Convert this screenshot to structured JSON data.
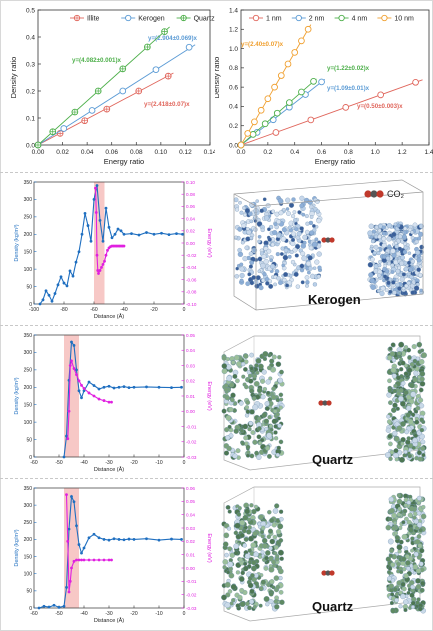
{
  "chart_data": [
    {
      "type": "scatter",
      "ylabel": "Density ratio",
      "xlabel": "Energy ratio",
      "xlim": [
        0,
        0.14
      ],
      "ylim": [
        0,
        0.5
      ],
      "xticks": [
        "0.00",
        "0.02",
        "0.04",
        "0.06",
        "0.08",
        "0.10",
        "0.12",
        "0.14"
      ],
      "yticks": [
        "0.0",
        "0.1",
        "0.2",
        "0.3",
        "0.4",
        "0.5"
      ],
      "legend_position": "top",
      "series": [
        {
          "name": "Illite",
          "color": "#e0665c",
          "marker": "cross-circle",
          "fit": "y=(2.418±0.07)x",
          "slope": 2.418,
          "x": [
            0.0,
            0.018,
            0.038,
            0.056,
            0.082,
            0.106
          ],
          "y": [
            0.0,
            0.043,
            0.09,
            0.133,
            0.2,
            0.255
          ]
        },
        {
          "name": "Kerogen",
          "color": "#5b9bd5",
          "marker": "circle",
          "fit": "y=(2.904±0.069)x",
          "slope": 2.904,
          "x": [
            0.0,
            0.021,
            0.044,
            0.069,
            0.096,
            0.123
          ],
          "y": [
            0.0,
            0.061,
            0.128,
            0.2,
            0.279,
            0.362
          ]
        },
        {
          "name": "Quartz",
          "color": "#4daf4a",
          "marker": "cross-circle",
          "fit": "y=(4.082±0.001)x",
          "slope": 4.082,
          "x": [
            0.0,
            0.012,
            0.03,
            0.049,
            0.069,
            0.089,
            0.103
          ],
          "y": [
            0.0,
            0.049,
            0.122,
            0.2,
            0.282,
            0.363,
            0.42
          ]
        }
      ]
    },
    {
      "type": "scatter",
      "ylabel": "Density ratio",
      "xlabel": "Energy ratio",
      "xlim": [
        0,
        1.4
      ],
      "ylim": [
        0,
        1.4
      ],
      "xticks": [
        "0.0",
        "0.2",
        "0.4",
        "0.6",
        "0.8",
        "1.0",
        "1.2",
        "1.4"
      ],
      "yticks": [
        "0.0",
        "0.2",
        "0.4",
        "0.6",
        "0.8",
        "1.0",
        "1.2",
        "1.4"
      ],
      "legend_position": "top",
      "series": [
        {
          "name": "1 nm",
          "color": "#e0665c",
          "marker": "circle",
          "fit": "y=(0.50±0.003)x",
          "slope": 0.5,
          "x": [
            0.0,
            0.26,
            0.52,
            0.78,
            1.04,
            1.3
          ],
          "y": [
            0.0,
            0.13,
            0.26,
            0.39,
            0.52,
            0.65
          ]
        },
        {
          "name": "2 nm",
          "color": "#5b9bd5",
          "marker": "circle",
          "fit": "y=(1.09±0.01)x",
          "slope": 1.09,
          "x": [
            0.0,
            0.12,
            0.24,
            0.36,
            0.48,
            0.6
          ],
          "y": [
            0.0,
            0.131,
            0.262,
            0.392,
            0.523,
            0.654
          ]
        },
        {
          "name": "4 nm",
          "color": "#4daf4a",
          "marker": "circle",
          "fit": "y=(1.22±0.02)x",
          "slope": 1.22,
          "x": [
            0.0,
            0.09,
            0.18,
            0.27,
            0.36,
            0.45,
            0.54
          ],
          "y": [
            0.0,
            0.11,
            0.22,
            0.33,
            0.44,
            0.55,
            0.66
          ]
        },
        {
          "name": "10 nm",
          "color": "#f0a030",
          "marker": "circle",
          "fit": "y=(2.40±0.07)x",
          "slope": 2.4,
          "x": [
            0.0,
            0.05,
            0.1,
            0.15,
            0.2,
            0.25,
            0.3,
            0.35,
            0.4,
            0.45,
            0.5
          ],
          "y": [
            0.0,
            0.12,
            0.24,
            0.36,
            0.48,
            0.6,
            0.72,
            0.84,
            0.96,
            1.08,
            1.2
          ]
        }
      ]
    },
    {
      "type": "line",
      "xlabel": "Distance (Å)",
      "ylabel": "Density (kg/m³)",
      "y2label": "Energy (eV)",
      "xlim": [
        -100,
        0
      ],
      "ylim": [
        0,
        350
      ],
      "y2lim": [
        -0.1,
        0.1
      ],
      "xticks": [
        "-100",
        "-80",
        "-60",
        "-40",
        "-20",
        "0"
      ],
      "yticks": [
        "0",
        "50",
        "100",
        "150",
        "200",
        "250",
        "300",
        "350"
      ],
      "y2ticks": [
        "-0.10",
        "-0.08",
        "-0.06",
        "-0.04",
        "-0.02",
        "0.00",
        "0.02",
        "0.04",
        "0.06",
        "0.08",
        "0.10"
      ],
      "highlight_x": [
        -60,
        -53
      ],
      "series": [
        {
          "name": "Density",
          "color": "#1f6fc0",
          "axis": "left",
          "x": [
            -96,
            -94,
            -92,
            -90,
            -88,
            -86,
            -84,
            -82,
            -80,
            -78,
            -76,
            -74,
            -72,
            -70,
            -68,
            -66,
            -64,
            -62,
            -60,
            -58,
            -56,
            -54,
            -52,
            -50,
            -48,
            -46,
            -44,
            -42,
            -40,
            -35,
            -30,
            -25,
            -20,
            -15,
            -10,
            -5,
            -1
          ],
          "y": [
            0,
            12,
            38,
            25,
            8,
            30,
            55,
            78,
            60,
            52,
            95,
            80,
            120,
            150,
            200,
            260,
            225,
            180,
            300,
            340,
            240,
            180,
            275,
            220,
            190,
            200,
            215,
            210,
            200,
            202,
            198,
            205,
            200,
            203,
            199,
            202,
            200
          ]
        },
        {
          "name": "Energy",
          "color": "#e020e0",
          "axis": "right",
          "x": [
            -59,
            -58.5,
            -58,
            -57.5,
            -57,
            -56,
            -55,
            -54,
            -53,
            -52,
            -51,
            -50,
            -49,
            -48,
            -47,
            -46,
            -45,
            -44,
            -43,
            -42,
            -41,
            -40
          ],
          "y": [
            0.09,
            0.05,
            -0.02,
            -0.045,
            -0.05,
            -0.045,
            -0.04,
            -0.035,
            -0.03,
            -0.02,
            -0.012,
            -0.008,
            -0.006,
            -0.005,
            -0.005,
            -0.005,
            -0.005,
            -0.005,
            -0.005,
            -0.005,
            -0.005,
            -0.005
          ]
        }
      ]
    },
    {
      "type": "line",
      "xlabel": "Distance (Å)",
      "ylabel": "Density (kg/m³)",
      "y2label": "Energy (eV)",
      "xlim": [
        -60,
        0
      ],
      "ylim": [
        0,
        350
      ],
      "y2lim": [
        -0.03,
        0.05
      ],
      "xticks": [
        "-60",
        "-50",
        "-40",
        "-30",
        "-20",
        "-10",
        "0"
      ],
      "yticks": [
        "0",
        "50",
        "100",
        "150",
        "200",
        "250",
        "300",
        "350"
      ],
      "y2ticks": [
        "-0.03",
        "-0.02",
        "-0.01",
        "0.00",
        "0.01",
        "0.02",
        "0.03",
        "0.04",
        "0.05"
      ],
      "highlight_x": [
        -48,
        -42
      ],
      "series": [
        {
          "name": "Density",
          "color": "#1f6fc0",
          "axis": "left",
          "x": [
            -48,
            -47,
            -46,
            -45,
            -44,
            -43,
            -42,
            -41,
            -40,
            -38,
            -36,
            -34,
            -32,
            -30,
            -28,
            -26,
            -24,
            -22,
            -20,
            -15,
            -10,
            -5,
            -1
          ],
          "y": [
            0,
            60,
            220,
            330,
            320,
            250,
            190,
            170,
            190,
            215,
            205,
            195,
            200,
            203,
            198,
            200,
            202,
            199,
            200,
            201,
            200,
            199,
            200
          ]
        },
        {
          "name": "Energy",
          "color": "#e020e0",
          "axis": "right",
          "x": [
            -46.5,
            -46,
            -45.5,
            -45,
            -44,
            -43,
            -42,
            -41,
            -40,
            -38,
            -36,
            -34,
            -32,
            -30,
            -29
          ],
          "y": [
            -0.018,
            0.0,
            0.03,
            0.033,
            0.028,
            0.024,
            0.02,
            0.017,
            0.015,
            0.012,
            0.01,
            0.008,
            0.007,
            0.006,
            0.006
          ]
        }
      ]
    },
    {
      "type": "line",
      "xlabel": "Distance (Å)",
      "ylabel": "Density (kg/m³)",
      "y2label": "Energy (eV)",
      "xlim": [
        -60,
        0
      ],
      "ylim": [
        0,
        350
      ],
      "y2lim": [
        -0.03,
        0.06
      ],
      "xticks": [
        "-60",
        "-50",
        "-40",
        "-30",
        "-20",
        "-10",
        "0"
      ],
      "yticks": [
        "0",
        "50",
        "100",
        "150",
        "200",
        "250",
        "300",
        "350"
      ],
      "y2ticks": [
        "-0.03",
        "-0.02",
        "-0.01",
        "0.00",
        "0.01",
        "0.02",
        "0.03",
        "0.04",
        "0.05",
        "0.06"
      ],
      "highlight_x": [
        -48,
        -42
      ],
      "series": [
        {
          "name": "Density",
          "color": "#1f6fc0",
          "axis": "left",
          "x": [
            -58,
            -56,
            -54,
            -52,
            -50,
            -48,
            -47,
            -46,
            -45,
            -44,
            -43,
            -42,
            -41,
            -40,
            -38,
            -36,
            -34,
            -32,
            -30,
            -28,
            -26,
            -24,
            -22,
            -20,
            -15,
            -10,
            -5,
            -1
          ],
          "y": [
            0,
            5,
            3,
            8,
            2,
            5,
            60,
            230,
            325,
            310,
            240,
            185,
            160,
            175,
            205,
            215,
            205,
            200,
            198,
            202,
            200,
            199,
            201,
            200,
            202,
            198,
            201,
            200
          ]
        },
        {
          "name": "Energy",
          "color": "#e020e0",
          "axis": "right",
          "x": [
            -47,
            -46.5,
            -46,
            -45.5,
            -45,
            -44,
            -43,
            -42,
            -41,
            -40,
            -38,
            -36,
            -34,
            -32,
            -30,
            -29
          ],
          "y": [
            0.055,
            0.02,
            -0.018,
            -0.01,
            0.0,
            0.005,
            0.006,
            0.006,
            0.006,
            0.006,
            0.006,
            0.006,
            0.006,
            0.006,
            0.006,
            0.006
          ]
        }
      ]
    }
  ],
  "images": {
    "kerogen_label": "Kerogen",
    "quartz_label_1": "Quartz",
    "quartz_label_2": "Quartz",
    "co2_legend": "CO₂"
  }
}
